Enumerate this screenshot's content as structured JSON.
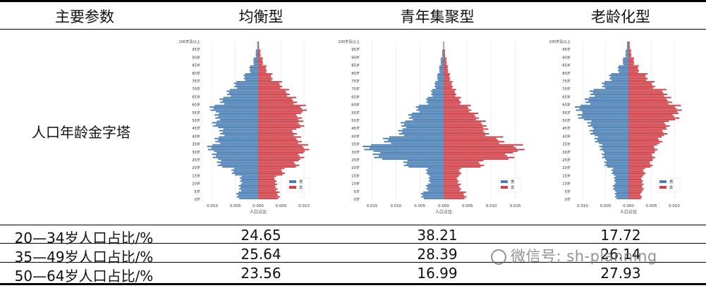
{
  "table": {
    "header": [
      "主要参数",
      "均衡型",
      "青年集聚型",
      "老龄化型"
    ],
    "pyramid_row_label": "人口年龄金字塔",
    "rows": [
      {
        "label": "20—34岁人口占比/%",
        "values": [
          "24.65",
          "38.21",
          "17.72"
        ]
      },
      {
        "label": "35—49岁人口占比/%",
        "values": [
          "25.64",
          "28.39",
          "26.14"
        ]
      },
      {
        "label": "50—64岁人口占比/%",
        "values": [
          "23.56",
          "16.99",
          "27.93"
        ]
      }
    ]
  },
  "watermark": "微信号: sh-planning",
  "colors": {
    "male": "#4a7fb5",
    "female": "#d04048"
  },
  "chart_data": [
    {
      "type": "bar",
      "title": "均衡型",
      "xlabel": "人口占比",
      "y_tick_labels": [
        "0岁",
        "5岁",
        "10岁",
        "15岁",
        "20岁",
        "25岁",
        "30岁",
        "35岁",
        "40岁",
        "45岁",
        "50岁",
        "55岁",
        "60岁",
        "65岁",
        "70岁",
        "75岁",
        "80岁",
        "85岁",
        "90岁",
        "95岁",
        "100岁及以上"
      ],
      "x_tick_labels": [
        "0.010",
        "0.005",
        "0.000",
        "0.005",
        "0.010"
      ],
      "xlim": [
        -0.012,
        0.012
      ],
      "legend": [
        "男",
        "女"
      ],
      "legend_position": "bottom-right",
      "age_groups": [
        0,
        5,
        10,
        15,
        20,
        25,
        30,
        35,
        40,
        45,
        50,
        55,
        60,
        65,
        70,
        75,
        80,
        85,
        90,
        95
      ],
      "series": [
        {
          "name": "男",
          "values": [
            0.0045,
            0.004,
            0.0038,
            0.0055,
            0.0085,
            0.0095,
            0.0105,
            0.009,
            0.008,
            0.0095,
            0.009,
            0.01,
            0.008,
            0.0065,
            0.005,
            0.003,
            0.0018,
            0.001,
            0.0005,
            0.0002
          ]
        },
        {
          "name": "女",
          "values": [
            0.0045,
            0.004,
            0.0038,
            0.0055,
            0.0085,
            0.0095,
            0.0105,
            0.009,
            0.008,
            0.0095,
            0.009,
            0.01,
            0.008,
            0.0065,
            0.005,
            0.003,
            0.0018,
            0.001,
            0.0005,
            0.0002
          ]
        }
      ]
    },
    {
      "type": "bar",
      "title": "青年集聚型",
      "xlabel": "人口占比",
      "y_tick_labels": [
        "0岁",
        "5岁",
        "10岁",
        "15岁",
        "20岁",
        "25岁",
        "30岁",
        "35岁",
        "40岁",
        "45岁",
        "50岁",
        "55岁",
        "60岁",
        "65岁",
        "70岁",
        "75岁",
        "80岁",
        "85岁",
        "90岁",
        "95岁",
        "100岁及以上"
      ],
      "x_tick_labels": [
        "0.015",
        "0.010",
        "0.005",
        "0.000",
        "0.005",
        "0.010",
        "0.015"
      ],
      "xlim": [
        -0.017,
        0.017
      ],
      "legend": [
        "男",
        "女"
      ],
      "legend_position": "bottom-right",
      "age_groups": [
        0,
        5,
        10,
        15,
        20,
        25,
        30,
        35,
        40,
        45,
        50,
        55,
        60,
        65,
        70,
        75,
        80,
        85,
        90,
        95
      ],
      "series": [
        {
          "name": "男",
          "values": [
            0.0045,
            0.0035,
            0.003,
            0.0035,
            0.008,
            0.014,
            0.016,
            0.012,
            0.009,
            0.0085,
            0.007,
            0.0055,
            0.0035,
            0.0025,
            0.0018,
            0.0013,
            0.0009,
            0.0006,
            0.0003,
            0.0001
          ]
        },
        {
          "name": "女",
          "values": [
            0.0045,
            0.0035,
            0.003,
            0.0035,
            0.008,
            0.014,
            0.016,
            0.012,
            0.009,
            0.0085,
            0.007,
            0.0055,
            0.0035,
            0.0025,
            0.0018,
            0.0013,
            0.0009,
            0.0006,
            0.0003,
            0.0001
          ]
        }
      ]
    },
    {
      "type": "bar",
      "title": "老龄化型",
      "xlabel": "人口占比",
      "y_tick_labels": [
        "0岁",
        "5岁",
        "10岁",
        "15岁",
        "20岁",
        "25岁",
        "30岁",
        "35岁",
        "40岁",
        "45岁",
        "50岁",
        "55岁",
        "60岁",
        "65岁",
        "70岁",
        "75岁",
        "80岁",
        "85岁",
        "90岁",
        "95岁",
        "100岁及以上"
      ],
      "x_tick_labels": [
        "0.010",
        "0.005",
        "0.000",
        "0.005",
        "0.010"
      ],
      "xlim": [
        -0.012,
        0.012
      ],
      "legend": [
        "男",
        "女"
      ],
      "legend_position": "bottom-right",
      "age_groups": [
        0,
        5,
        10,
        15,
        20,
        25,
        30,
        35,
        40,
        45,
        50,
        55,
        60,
        65,
        70,
        75,
        80,
        85,
        90,
        95
      ],
      "series": [
        {
          "name": "男",
          "values": [
            0.0028,
            0.0032,
            0.003,
            0.0035,
            0.005,
            0.0055,
            0.006,
            0.007,
            0.008,
            0.0085,
            0.0105,
            0.011,
            0.009,
            0.008,
            0.0055,
            0.004,
            0.0022,
            0.0012,
            0.0006,
            0.0003
          ]
        },
        {
          "name": "女",
          "values": [
            0.0028,
            0.0032,
            0.003,
            0.0035,
            0.005,
            0.0055,
            0.006,
            0.007,
            0.008,
            0.0085,
            0.0105,
            0.011,
            0.009,
            0.008,
            0.0055,
            0.004,
            0.0022,
            0.0012,
            0.0006,
            0.0003
          ]
        }
      ]
    }
  ]
}
